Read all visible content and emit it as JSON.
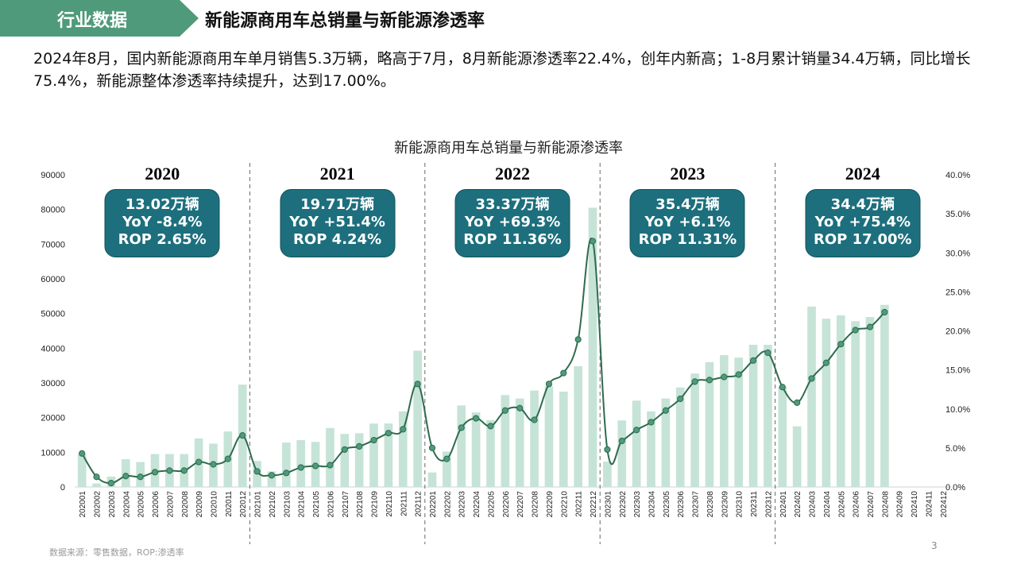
{
  "header": {
    "tag": "行业数据",
    "title": "新能源商用车总销量与新能源渗透率",
    "tag_color": "#4f9a7a"
  },
  "summary": "2024年8月，国内新能源商用车单月销售5.3万辆，略高于7月，8月新能源渗透率22.4%，创年内新高；1-8月累计销量34.4万辆，同比增长75.4%，新能源整体渗透率持续提升，达到17.00%。",
  "footer": {
    "source": "数据来源：零售数据，ROP:渗透率",
    "page": "3"
  },
  "annotations": [
    {
      "year": "2020",
      "line1": "13.02万辆",
      "line2": "YoY -8.4%",
      "line3": "ROP 2.65%"
    },
    {
      "year": "2021",
      "line1": "19.71万辆",
      "line2": "YoY +51.4%",
      "line3": "ROP 4.24%"
    },
    {
      "year": "2022",
      "line1": "33.37万辆",
      "line2": "YoY +69.3%",
      "line3": "ROP 11.36%"
    },
    {
      "year": "2023",
      "line1": "35.4万辆",
      "line2": "YoY +6.1%",
      "line3": "ROP 11.31%"
    },
    {
      "year": "2024",
      "line1": "34.4万辆",
      "line2": "YoY +75.4%",
      "line3": "ROP 17.00%"
    }
  ],
  "chart_data": {
    "type": "bar+line",
    "title": "新能源商用车总销量与新能源渗透率",
    "categories": [
      "202001",
      "202002",
      "202003",
      "202004",
      "202005",
      "202006",
      "202007",
      "202008",
      "202009",
      "202010",
      "202011",
      "202012",
      "202101",
      "202102",
      "202103",
      "202104",
      "202105",
      "202106",
      "202107",
      "202108",
      "202109",
      "202110",
      "202111",
      "202112",
      "202201",
      "202202",
      "202203",
      "202204",
      "202205",
      "202206",
      "202207",
      "202208",
      "202209",
      "202210",
      "202211",
      "202212",
      "202301",
      "202302",
      "202303",
      "202304",
      "202305",
      "202306",
      "202307",
      "202308",
      "202309",
      "202310",
      "202311",
      "202312",
      "202401",
      "202402",
      "202403",
      "202404",
      "202405",
      "202406",
      "202407",
      "202408",
      "202409",
      "202410",
      "202411",
      "202412"
    ],
    "series": [
      {
        "type": "bar",
        "axis": "left",
        "values": [
          9500,
          1000,
          3000,
          8000,
          7200,
          9500,
          9500,
          9500,
          14000,
          12500,
          16000,
          29500,
          7500,
          4500,
          12800,
          13500,
          13000,
          17000,
          15300,
          15500,
          18300,
          18300,
          21800,
          39300,
          4200,
          10200,
          23500,
          21500,
          19300,
          26500,
          25500,
          27800,
          29000,
          27500,
          34800,
          80500,
          7300,
          19200,
          24900,
          21800,
          25500,
          28700,
          32700,
          36000,
          38000,
          37300,
          41000,
          41000,
          29000,
          17500,
          52000,
          48500,
          49500,
          47800,
          49000,
          52500,
          null,
          null,
          null,
          null
        ],
        "color": "#c6e3d7"
      },
      {
        "type": "line",
        "axis": "right",
        "values": [
          4.3,
          1.3,
          0.5,
          1.4,
          1.3,
          1.9,
          2.1,
          2.1,
          3.2,
          2.9,
          3.6,
          6.6,
          2.0,
          1.5,
          1.8,
          2.5,
          2.7,
          2.8,
          4.8,
          5.2,
          6.0,
          6.9,
          7.4,
          13.2,
          5.0,
          3.6,
          7.6,
          8.8,
          7.8,
          9.8,
          10.1,
          8.6,
          13.2,
          14.6,
          18.9,
          31.5,
          4.8,
          5.9,
          7.3,
          8.3,
          9.8,
          11.3,
          13.5,
          13.7,
          14.1,
          14.4,
          16.2,
          17.2,
          12.8,
          10.8,
          13.9,
          15.9,
          18.3,
          20.1,
          20.5,
          22.4,
          null,
          null,
          null,
          null
        ],
        "color": "#2f6b4f"
      }
    ],
    "y_left": {
      "min": 0,
      "max": 90000,
      "ticks": [
        "0",
        "10000",
        "20000",
        "30000",
        "40000",
        "50000",
        "60000",
        "70000",
        "80000",
        "90000"
      ]
    },
    "y_right": {
      "min": 0,
      "max": 40,
      "ticks": [
        "0.0%",
        "5.0%",
        "10.0%",
        "15.0%",
        "20.0%",
        "25.0%",
        "30.0%",
        "35.0%",
        "40.0%"
      ]
    },
    "grid": false,
    "legend": "none",
    "year_separators": true
  }
}
